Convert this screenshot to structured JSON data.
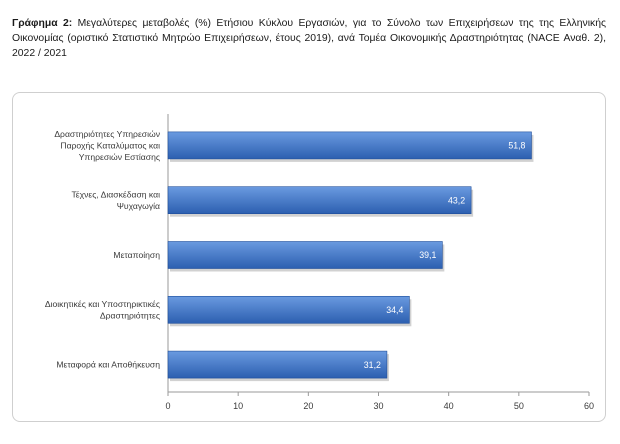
{
  "caption": {
    "lead": "Γράφημα 2:",
    "text": "Μεγαλύτερες μεταβολές (%) Ετήσιου Κύκλου Εργασιών, για το Σύνολο των Επιχειρήσεων της της Ελληνικής Οικονομίας (οριστικό Στατιστικό Μητρώο Επιχειρήσεων, έτους 2019), ανά Τομέα Οικονομικής Δραστηριότητας (NACE Αναθ. 2), 2022 / 2021"
  },
  "chart_data": {
    "type": "bar",
    "orientation": "horizontal",
    "title": "",
    "xlabel": "",
    "ylabel": "",
    "categories": [
      [
        "Δραστηριότητες Υπηρεσιών",
        "Παροχής Καταλύματος και",
        "Υπηρεσιών Εστίασης"
      ],
      [
        "Τέχνες, Διασκέδαση και",
        "Ψυχαγωγία"
      ],
      [
        "Μεταποίηση"
      ],
      [
        "Διοικητικές και Υποστηρικτικές",
        "Δραστηριότητες"
      ],
      [
        "Μεταφορά και Αποθήκευση"
      ]
    ],
    "values": [
      51.8,
      43.2,
      39.1,
      34.4,
      31.2
    ],
    "value_labels": [
      "51,8",
      "43,2",
      "39,1",
      "34,4",
      "31,2"
    ],
    "xlim": [
      0,
      60
    ],
    "ticks": [
      0,
      10,
      20,
      30,
      40,
      50,
      60
    ],
    "grid": false,
    "legend": "none",
    "colors": {
      "bar_top": "#6a9ae0",
      "bar_bottom": "#2c5fb0",
      "bar_edge": "#1f4e9a",
      "axis": "#9a9a9a"
    }
  }
}
